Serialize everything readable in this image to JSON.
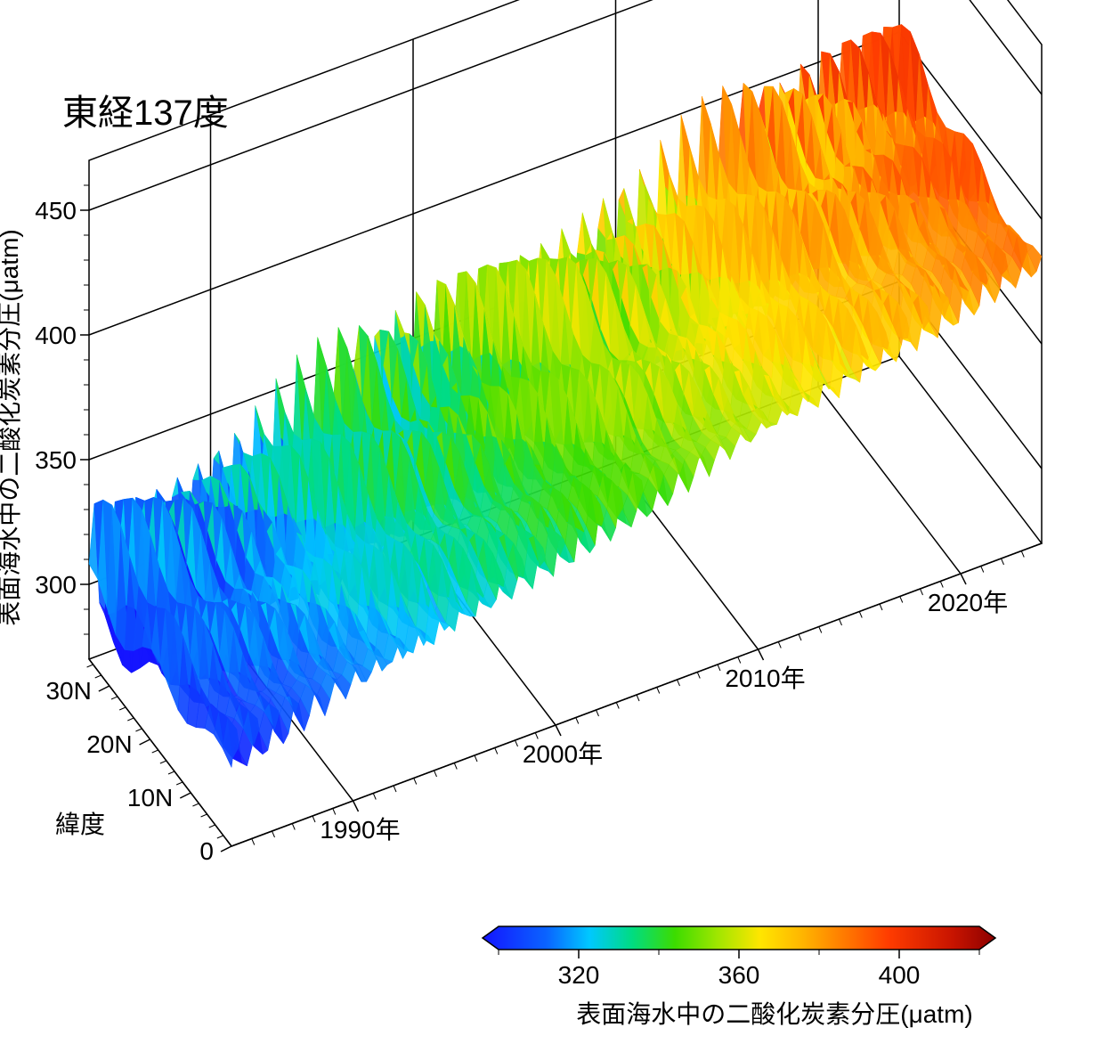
{
  "chart": {
    "type": "3d-surface",
    "title": "東経137度",
    "title_fontsize": 40,
    "background_color": "#ffffff",
    "axis_line_color": "#000000",
    "axis_line_width": 1.5,
    "tick_fontsize": 28,
    "label_fontsize": 28,
    "z_axis": {
      "label": "表面海水中の二酸化炭素分圧(μatm)",
      "min": 270,
      "max": 470,
      "ticks": [
        300,
        350,
        400,
        450
      ]
    },
    "y_axis": {
      "label": "緯度",
      "min": 0,
      "max": 35,
      "ticks": [
        "0",
        "10N",
        "20N",
        "30N"
      ]
    },
    "x_axis": {
      "min": 1984,
      "max": 2024,
      "ticks": [
        "1990年",
        "2000年",
        "2010年",
        "2020年"
      ]
    },
    "colorbar": {
      "label": "表面海水中の二酸化炭素分圧(μatm)",
      "min": 300,
      "max": 420,
      "ticks": [
        320,
        360,
        400
      ],
      "stops": [
        {
          "value": 300,
          "color": "#1414ff"
        },
        {
          "value": 315,
          "color": "#0a64ff"
        },
        {
          "value": 325,
          "color": "#00c8ff"
        },
        {
          "value": 335,
          "color": "#00dc82"
        },
        {
          "value": 345,
          "color": "#3cdc00"
        },
        {
          "value": 355,
          "color": "#a0e600"
        },
        {
          "value": 365,
          "color": "#ffe600"
        },
        {
          "value": 375,
          "color": "#ffb400"
        },
        {
          "value": 385,
          "color": "#ff7800"
        },
        {
          "value": 395,
          "color": "#ff3c00"
        },
        {
          "value": 410,
          "color": "#c81400"
        },
        {
          "value": 420,
          "color": "#8c0000"
        }
      ]
    },
    "surface_years": [
      1985,
      1986,
      1987,
      1988,
      1989,
      1990,
      1991,
      1992,
      1993,
      1994,
      1995,
      1996,
      1997,
      1998,
      1999,
      2000,
      2001,
      2002,
      2003,
      2004,
      2005,
      2006,
      2007,
      2008,
      2009,
      2010,
      2011,
      2012,
      2013,
      2014,
      2015,
      2016,
      2017,
      2018,
      2019,
      2020,
      2021,
      2022,
      2023
    ],
    "surface_lats": [
      0,
      5,
      10,
      15,
      20,
      25,
      30,
      34
    ],
    "base_value": 300,
    "trend_per_year": 2.0,
    "lat_amplitude": 25,
    "seasonal_amplitude": 35
  }
}
